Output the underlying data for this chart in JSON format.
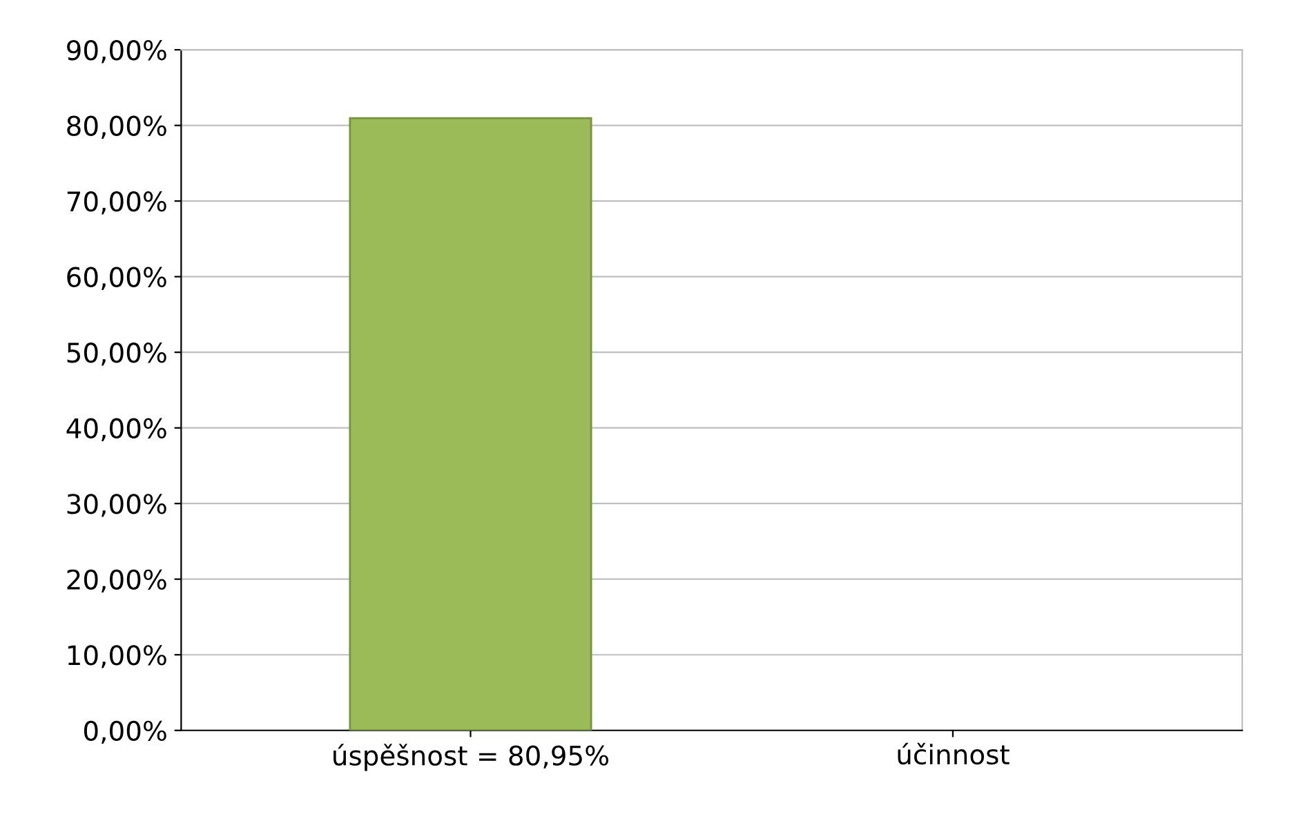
{
  "chart_data": {
    "type": "bar",
    "categories": [
      "úspěšnost = 80,95%",
      "účinnost"
    ],
    "values": [
      80.95,
      null
    ],
    "color": "#9bbb59",
    "ylim": [
      0,
      90
    ],
    "yticks": [
      {
        "value": 0,
        "label": "0,00%"
      },
      {
        "value": 10,
        "label": "10,00%"
      },
      {
        "value": 20,
        "label": "20,00%"
      },
      {
        "value": 30,
        "label": "30,00%"
      },
      {
        "value": 40,
        "label": "40,00%"
      },
      {
        "value": 50,
        "label": "50,00%"
      },
      {
        "value": 60,
        "label": "60,00%"
      },
      {
        "value": 70,
        "label": "70,00%"
      },
      {
        "value": 80,
        "label": "80,00%"
      },
      {
        "value": 90,
        "label": "90,00%"
      }
    ],
    "grid": "y"
  }
}
